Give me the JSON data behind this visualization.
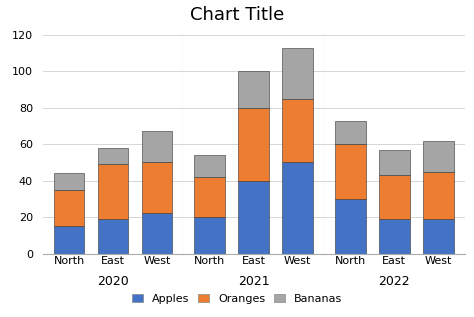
{
  "title": "Chart Title",
  "years": [
    "2020",
    "2021",
    "2022"
  ],
  "regions": [
    "North",
    "East",
    "West"
  ],
  "data": {
    "2020": {
      "Apples": [
        15,
        19,
        22
      ],
      "Oranges": [
        20,
        30,
        28
      ],
      "Bananas": [
        9,
        9,
        17
      ]
    },
    "2021": {
      "Apples": [
        20,
        40,
        50
      ],
      "Oranges": [
        22,
        40,
        35
      ],
      "Bananas": [
        12,
        20,
        28
      ]
    },
    "2022": {
      "Apples": [
        30,
        19,
        19
      ],
      "Oranges": [
        30,
        24,
        26
      ],
      "Bananas": [
        13,
        14,
        17
      ]
    }
  },
  "colors": {
    "Apples": "#4472C4",
    "Oranges": "#ED7D31",
    "Bananas": "#A5A5A5"
  },
  "ylim": [
    0,
    120
  ],
  "yticks": [
    0,
    20,
    40,
    60,
    80,
    100,
    120
  ],
  "background_color": "#ffffff",
  "title_fontsize": 13,
  "bar_width": 0.7,
  "legend_fontsize": 8
}
